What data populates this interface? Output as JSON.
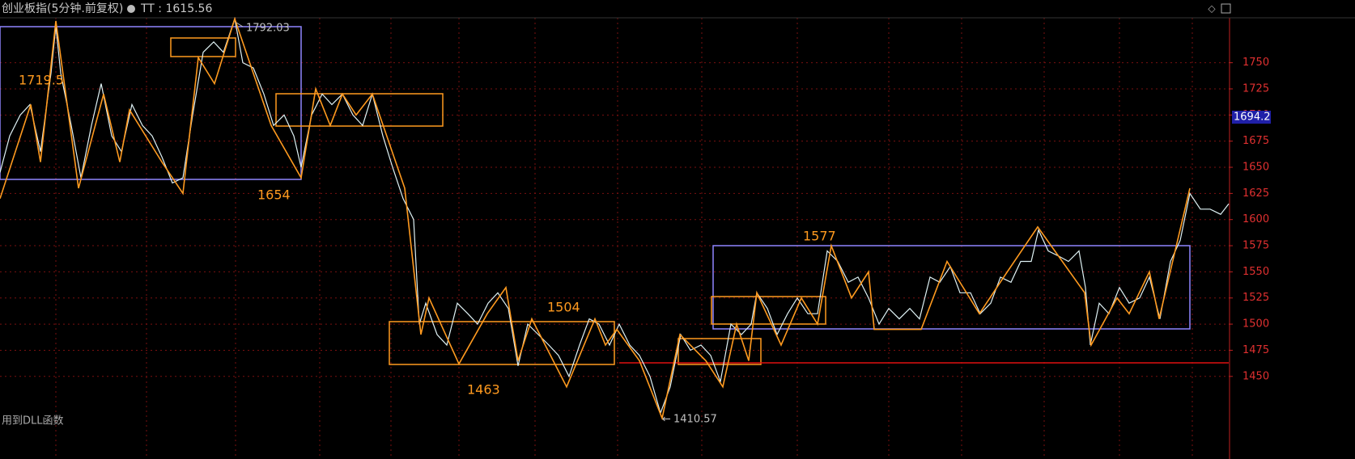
{
  "header": {
    "title": "创业板指(5分钟.前复权)",
    "indicator": "TT : 1615.56"
  },
  "footer": "用到DLL函数",
  "chart_data": {
    "type": "line",
    "xlim": [
      0,
      1518
    ],
    "ylim": [
      1371,
      1810
    ],
    "yticks": [
      1450,
      1475,
      1500,
      1525,
      1550,
      1575,
      1600,
      1625,
      1650,
      1675,
      1700,
      1725,
      1750
    ],
    "grid": true,
    "current_price": "1694.2",
    "annotations": [
      "1719.5",
      "1654",
      "1504",
      "1463",
      "1577"
    ],
    "extremes": [
      "1792.03",
      "1410.57"
    ],
    "reference_line": 1463,
    "series": [
      {
        "color": "#dff2f5",
        "x": [
          0,
          12,
          25,
          37,
          50,
          63,
          69,
          75,
          88,
          100,
          113,
          125,
          138,
          150,
          163,
          176,
          188,
          200,
          213,
          226,
          238,
          251,
          264,
          276,
          290,
          300,
          313,
          326,
          338,
          351,
          363,
          372,
          385,
          398,
          410,
          423,
          436,
          448,
          460,
          473,
          485,
          498,
          511,
          518,
          526,
          540,
          552,
          565,
          578,
          590,
          603,
          615,
          628,
          640,
          652,
          665,
          678,
          690,
          703,
          716,
          728,
          740,
          753,
          765,
          778,
          790,
          803,
          816,
          828,
          841,
          853,
          866,
          878,
          890,
          903,
          916,
          928,
          935,
          948,
          960,
          973,
          985,
          998,
          1010,
          1022,
          1035,
          1048,
          1060,
          1073,
          1086,
          1098,
          1111,
          1124,
          1136,
          1149,
          1161,
          1174,
          1186,
          1199,
          1211,
          1224,
          1236,
          1249,
          1261,
          1274,
          1283,
          1295,
          1308,
          1320,
          1333,
          1341,
          1347,
          1358,
          1370,
          1383,
          1395,
          1408,
          1420,
          1433,
          1446,
          1458,
          1470,
          1483,
          1495,
          1508,
          1518
        ],
        "values": [
          1645,
          1680,
          1700,
          1710,
          1665,
          1740,
          1785,
          1740,
          1690,
          1640,
          1690,
          1730,
          1680,
          1665,
          1710,
          1690,
          1680,
          1660,
          1635,
          1640,
          1700,
          1760,
          1770,
          1760,
          1792,
          1750,
          1745,
          1720,
          1690,
          1700,
          1680,
          1650,
          1700,
          1720,
          1710,
          1720,
          1700,
          1690,
          1720,
          1680,
          1650,
          1620,
          1600,
          1500,
          1520,
          1490,
          1480,
          1520,
          1510,
          1500,
          1520,
          1530,
          1515,
          1460,
          1500,
          1490,
          1480,
          1470,
          1450,
          1480,
          1505,
          1500,
          1480,
          1500,
          1480,
          1470,
          1450,
          1415,
          1440,
          1490,
          1475,
          1480,
          1470,
          1445,
          1500,
          1490,
          1500,
          1530,
          1515,
          1490,
          1510,
          1525,
          1510,
          1510,
          1570,
          1560,
          1540,
          1545,
          1525,
          1500,
          1515,
          1505,
          1515,
          1505,
          1545,
          1540,
          1555,
          1530,
          1530,
          1510,
          1520,
          1545,
          1540,
          1560,
          1560,
          1590,
          1570,
          1565,
          1560,
          1570,
          1535,
          1480,
          1520,
          1510,
          1535,
          1520,
          1525,
          1545,
          1505,
          1560,
          1580,
          1625,
          1610,
          1610,
          1605,
          1615
        ]
      },
      {
        "color": "#ff9a1f",
        "x": [
          0,
          38,
          50,
          69,
          97,
          128,
          148,
          160,
          200,
          226,
          245,
          265,
          290,
          335,
          372,
          390,
          408,
          423,
          440,
          460,
          500,
          520,
          530,
          567,
          602,
          625,
          640,
          657,
          700,
          735,
          748,
          762,
          790,
          818,
          840,
          872,
          893,
          910,
          925,
          935,
          965,
          990,
          1010,
          1027,
          1052,
          1073,
          1080,
          1138,
          1170,
          1210,
          1240,
          1282,
          1340,
          1348,
          1380,
          1395,
          1420,
          1432,
          1470
        ],
        "values": [
          1620,
          1710,
          1655,
          1790,
          1630,
          1720,
          1655,
          1705,
          1655,
          1625,
          1755,
          1730,
          1792,
          1690,
          1640,
          1725,
          1690,
          1720,
          1700,
          1720,
          1630,
          1490,
          1525,
          1462,
          1510,
          1535,
          1465,
          1505,
          1440,
          1505,
          1480,
          1495,
          1465,
          1410,
          1490,
          1465,
          1440,
          1500,
          1465,
          1530,
          1480,
          1525,
          1500,
          1575,
          1525,
          1550,
          1495,
          1495,
          1560,
          1510,
          1545,
          1593,
          1530,
          1480,
          1525,
          1510,
          1550,
          1505,
          1630
        ]
      }
    ]
  }
}
